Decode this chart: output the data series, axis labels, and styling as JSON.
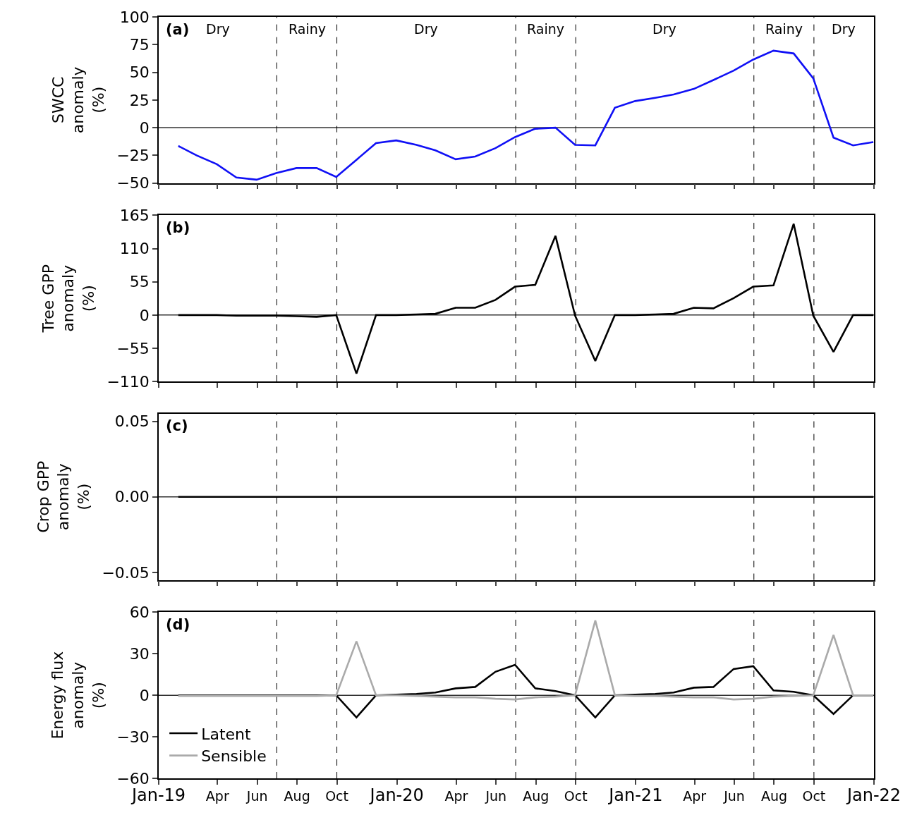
{
  "chart_data": [
    {
      "type": "line",
      "ylabel": "SWCC\nanomaly\n(%)",
      "tick_labels": "y",
      "x": [
        "2019-01-31",
        "2019-02-28",
        "2019-03-31",
        "2019-04-30",
        "2019-05-31",
        "2019-06-30",
        "2019-07-31",
        "2019-08-31",
        "2019-09-30",
        "2019-10-31",
        "2019-11-30",
        "2019-12-31",
        "2020-01-31",
        "2020-02-29",
        "2020-03-31",
        "2020-04-30",
        "2020-05-31",
        "2020-06-30",
        "2020-07-31",
        "2020-08-31",
        "2020-09-30",
        "2020-10-31",
        "2020-11-30",
        "2020-12-31",
        "2021-01-31",
        "2021-02-28",
        "2021-03-31",
        "2021-04-30",
        "2021-05-31",
        "2021-06-30",
        "2021-07-31",
        "2021-08-31",
        "2021-09-30",
        "2021-10-31",
        "2021-11-30",
        "2021-12-31"
      ],
      "series": [
        {
          "color": "#1010f5",
          "values": [
            -16.5,
            -25,
            -33,
            -45,
            -47,
            -41,
            -36.5,
            -36.5,
            -44.5,
            -29,
            -14,
            -11.5,
            -15.5,
            -20.5,
            -28.5,
            -26,
            -18.5,
            -8.5,
            -1,
            0,
            -15.5,
            -16,
            18,
            24,
            27,
            30,
            35,
            43,
            51.5,
            61.5,
            69.5,
            67,
            44.5,
            -9,
            -16,
            -13
          ]
        }
      ],
      "xlim": [
        "2019-01-01",
        "2022-01-01"
      ],
      "xticks": [
        {
          "value": "2019-01-01",
          "label": null
        },
        {
          "value": "2019-04-01",
          "label": null
        },
        {
          "value": "2019-06-01",
          "label": null
        },
        {
          "value": "2019-08-01",
          "label": null
        },
        {
          "value": "2019-10-01",
          "label": null
        },
        {
          "value": "2020-01-01",
          "label": null
        },
        {
          "value": "2020-04-01",
          "label": null
        },
        {
          "value": "2020-06-01",
          "label": null
        },
        {
          "value": "2020-08-01",
          "label": null
        },
        {
          "value": "2020-10-01",
          "label": null
        },
        {
          "value": "2021-01-01",
          "label": null
        },
        {
          "value": "2021-04-01",
          "label": null
        },
        {
          "value": "2021-06-01",
          "label": null
        },
        {
          "value": "2021-08-01",
          "label": null
        },
        {
          "value": "2021-10-01",
          "label": null
        },
        {
          "value": "2022-01-01",
          "label": null
        }
      ],
      "ylim": [
        -50,
        100
      ],
      "yticks": [
        {
          "value": -50,
          "label": "−50"
        },
        {
          "value": -25,
          "label": "−25"
        },
        0,
        25,
        50,
        75,
        100
      ],
      "ref_lines": [
        {
          "axis": "y",
          "value": 0,
          "color": "#333333",
          "line_style": "solid"
        },
        {
          "axis": "x",
          "value": "2019-07-01",
          "color": "#000000",
          "line_style": "dashed"
        },
        {
          "axis": "x",
          "value": "2019-10-01",
          "color": "#000000",
          "line_style": "dashed"
        },
        {
          "axis": "x",
          "value": "2020-07-01",
          "color": "#000000",
          "line_style": "dashed"
        },
        {
          "axis": "x",
          "value": "2020-10-01",
          "color": "#000000",
          "line_style": "dashed"
        },
        {
          "axis": "x",
          "value": "2021-07-01",
          "color": "#000000",
          "line_style": "dashed"
        },
        {
          "axis": "x",
          "value": "2021-10-01",
          "color": "#000000",
          "line_style": "dashed"
        }
      ],
      "annotations": [
        "(a)",
        "Dry",
        "Rainy",
        "Dry",
        "Rainy",
        "Dry",
        "Rainy",
        "Dry"
      ]
    },
    {
      "type": "line",
      "ylabel": "Tree GPP\nanomaly\n(%)",
      "tick_labels": "y",
      "x": [
        "2019-01-31",
        "2019-02-28",
        "2019-03-31",
        "2019-04-30",
        "2019-05-31",
        "2019-06-30",
        "2019-07-31",
        "2019-08-31",
        "2019-09-30",
        "2019-10-31",
        "2019-11-30",
        "2019-12-31",
        "2020-01-31",
        "2020-02-29",
        "2020-03-31",
        "2020-04-30",
        "2020-05-31",
        "2020-06-30",
        "2020-07-31",
        "2020-08-31",
        "2020-09-30",
        "2020-10-31",
        "2020-11-30",
        "2020-12-31",
        "2021-01-31",
        "2021-02-28",
        "2021-03-31",
        "2021-04-30",
        "2021-05-31",
        "2021-06-30",
        "2021-07-31",
        "2021-08-31",
        "2021-09-30",
        "2021-10-31",
        "2021-11-30",
        "2021-12-31"
      ],
      "series": [
        {
          "color": "#000000",
          "values": [
            0,
            0,
            0,
            -1,
            -1,
            -1,
            -2,
            -3,
            0,
            -97,
            0,
            0,
            1,
            2,
            12,
            12,
            25,
            47,
            50,
            131,
            -1,
            -76,
            0,
            0,
            1,
            2,
            12,
            11,
            28,
            47,
            49,
            151,
            -1,
            -61,
            0,
            0
          ]
        }
      ],
      "xlim": [
        "2019-01-01",
        "2022-01-01"
      ],
      "xticks": [
        {
          "value": "2019-01-01",
          "label": null
        },
        {
          "value": "2019-04-01",
          "label": null
        },
        {
          "value": "2019-06-01",
          "label": null
        },
        {
          "value": "2019-08-01",
          "label": null
        },
        {
          "value": "2019-10-01",
          "label": null
        },
        {
          "value": "2020-01-01",
          "label": null
        },
        {
          "value": "2020-04-01",
          "label": null
        },
        {
          "value": "2020-06-01",
          "label": null
        },
        {
          "value": "2020-08-01",
          "label": null
        },
        {
          "value": "2020-10-01",
          "label": null
        },
        {
          "value": "2021-01-01",
          "label": null
        },
        {
          "value": "2021-04-01",
          "label": null
        },
        {
          "value": "2021-06-01",
          "label": null
        },
        {
          "value": "2021-08-01",
          "label": null
        },
        {
          "value": "2021-10-01",
          "label": null
        },
        {
          "value": "2022-01-01",
          "label": null
        }
      ],
      "ylim": [
        -110,
        165
      ],
      "yticks": [
        {
          "value": -110,
          "label": "−110"
        },
        {
          "value": -55,
          "label": "−55"
        },
        0,
        55,
        110,
        165
      ],
      "ref_lines": [
        {
          "axis": "y",
          "value": 0,
          "color": "#333333",
          "line_style": "solid"
        },
        {
          "axis": "x",
          "value": "2019-07-01",
          "color": "#000000",
          "line_style": "dashed"
        },
        {
          "axis": "x",
          "value": "2019-10-01",
          "color": "#000000",
          "line_style": "dashed"
        },
        {
          "axis": "x",
          "value": "2020-07-01",
          "color": "#000000",
          "line_style": "dashed"
        },
        {
          "axis": "x",
          "value": "2020-10-01",
          "color": "#000000",
          "line_style": "dashed"
        },
        {
          "axis": "x",
          "value": "2021-07-01",
          "color": "#000000",
          "line_style": "dashed"
        },
        {
          "axis": "x",
          "value": "2021-10-01",
          "color": "#000000",
          "line_style": "dashed"
        }
      ],
      "annotations": [
        "(b)"
      ]
    },
    {
      "type": "line",
      "ylabel": "Crop GPP\nanomaly\n(%)",
      "tick_labels": "y",
      "x": [
        "2019-01-31",
        "2019-02-28",
        "2019-03-31",
        "2019-04-30",
        "2019-05-31",
        "2019-06-30",
        "2019-07-31",
        "2019-08-31",
        "2019-09-30",
        "2019-10-31",
        "2019-11-30",
        "2019-12-31",
        "2020-01-31",
        "2020-02-29",
        "2020-03-31",
        "2020-04-30",
        "2020-05-31",
        "2020-06-30",
        "2020-07-31",
        "2020-08-31",
        "2020-09-30",
        "2020-10-31",
        "2020-11-30",
        "2020-12-31",
        "2021-01-31",
        "2021-02-28",
        "2021-03-31",
        "2021-04-30",
        "2021-05-31",
        "2021-06-30",
        "2021-07-31",
        "2021-08-31",
        "2021-09-30",
        "2021-10-31",
        "2021-11-30",
        "2021-12-31"
      ],
      "series": [
        {
          "color": "#000000",
          "values": [
            0,
            0,
            0,
            0,
            0,
            0,
            0,
            0,
            0,
            0,
            0,
            0,
            0,
            0,
            0,
            0,
            0,
            0,
            0,
            0,
            0,
            0,
            0,
            0,
            0,
            0,
            0,
            0,
            0,
            0,
            0,
            0,
            0,
            0,
            0,
            0
          ]
        }
      ],
      "xlim": [
        "2019-01-01",
        "2022-01-01"
      ],
      "xticks": [
        {
          "value": "2019-01-01",
          "label": null
        },
        {
          "value": "2019-04-01",
          "label": null
        },
        {
          "value": "2019-06-01",
          "label": null
        },
        {
          "value": "2019-08-01",
          "label": null
        },
        {
          "value": "2019-10-01",
          "label": null
        },
        {
          "value": "2020-01-01",
          "label": null
        },
        {
          "value": "2020-04-01",
          "label": null
        },
        {
          "value": "2020-06-01",
          "label": null
        },
        {
          "value": "2020-08-01",
          "label": null
        },
        {
          "value": "2020-10-01",
          "label": null
        },
        {
          "value": "2021-01-01",
          "label": null
        },
        {
          "value": "2021-04-01",
          "label": null
        },
        {
          "value": "2021-06-01",
          "label": null
        },
        {
          "value": "2021-08-01",
          "label": null
        },
        {
          "value": "2021-10-01",
          "label": null
        },
        {
          "value": "2022-01-01",
          "label": null
        }
      ],
      "ylim": [
        -0.055,
        0.055
      ],
      "yticks": [
        {
          "value": -0.05,
          "label": "−0.05"
        },
        {
          "value": 0,
          "label": "0.00"
        },
        0.05
      ],
      "ref_lines": [
        {
          "axis": "y",
          "value": 0,
          "color": "#333333",
          "line_style": "solid"
        },
        {
          "axis": "x",
          "value": "2019-07-01",
          "color": "#000000",
          "line_style": "dashed"
        },
        {
          "axis": "x",
          "value": "2019-10-01",
          "color": "#000000",
          "line_style": "dashed"
        },
        {
          "axis": "x",
          "value": "2020-07-01",
          "color": "#000000",
          "line_style": "dashed"
        },
        {
          "axis": "x",
          "value": "2020-10-01",
          "color": "#000000",
          "line_style": "dashed"
        },
        {
          "axis": "x",
          "value": "2021-07-01",
          "color": "#000000",
          "line_style": "dashed"
        },
        {
          "axis": "x",
          "value": "2021-10-01",
          "color": "#000000",
          "line_style": "dashed"
        }
      ],
      "annotations": [
        "(c)"
      ]
    },
    {
      "type": "line",
      "ylabel": "Energy flux\nanomaly\n(%)",
      "legend": "bottom left",
      "x": [
        "2019-01-31",
        "2019-02-28",
        "2019-03-31",
        "2019-04-30",
        "2019-05-31",
        "2019-06-30",
        "2019-07-31",
        "2019-08-31",
        "2019-09-30",
        "2019-10-31",
        "2019-11-30",
        "2019-12-31",
        "2020-01-31",
        "2020-02-29",
        "2020-03-31",
        "2020-04-30",
        "2020-05-31",
        "2020-06-30",
        "2020-07-31",
        "2020-08-31",
        "2020-09-30",
        "2020-10-31",
        "2020-11-30",
        "2020-12-31",
        "2021-01-31",
        "2021-02-28",
        "2021-03-31",
        "2021-04-30",
        "2021-05-31",
        "2021-06-30",
        "2021-07-31",
        "2021-08-31",
        "2021-09-30",
        "2021-10-31",
        "2021-11-30",
        "2021-12-31"
      ],
      "series": [
        {
          "name": "Latent",
          "color": "#000000",
          "values": [
            0,
            0,
            0,
            0,
            0,
            0,
            0,
            0,
            0,
            -16,
            0,
            0.5,
            1,
            2,
            5,
            6,
            17,
            22,
            5,
            3,
            0,
            -16,
            0,
            0.5,
            1,
            2,
            5.5,
            6,
            19,
            21,
            3.5,
            2.5,
            0,
            -13.5,
            0,
            0
          ]
        },
        {
          "name": "Sensible",
          "color": "#aaaaaa",
          "values": [
            -0.5,
            -0.5,
            -0.5,
            -0.5,
            -0.5,
            -0.5,
            -0.5,
            -0.5,
            0,
            39,
            0,
            0,
            -0.5,
            -1,
            -1.5,
            -1.5,
            -2.5,
            -3,
            -1.5,
            -1,
            0,
            54,
            0,
            -0.5,
            -0.5,
            -1,
            -1.5,
            -1.5,
            -3,
            -2.5,
            -1,
            -0.5,
            0,
            43.5,
            0,
            0
          ]
        }
      ],
      "xlim": [
        "2019-01-01",
        "2022-01-01"
      ],
      "xticks": [
        {
          "value": "2019-01-01",
          "label": "Jan-19"
        },
        {
          "value": "2019-04-01",
          "label": "Apr"
        },
        {
          "value": "2019-06-01",
          "label": "Jun"
        },
        {
          "value": "2019-08-01",
          "label": "Aug"
        },
        {
          "value": "2019-10-01",
          "label": "Oct"
        },
        {
          "value": "2020-01-01",
          "label": "Jan-20"
        },
        {
          "value": "2020-04-01",
          "label": "Apr"
        },
        {
          "value": "2020-06-01",
          "label": "Jun"
        },
        {
          "value": "2020-08-01",
          "label": "Aug"
        },
        {
          "value": "2020-10-01",
          "label": "Oct"
        },
        {
          "value": "2021-01-01",
          "label": "Jan-21"
        },
        {
          "value": "2021-04-01",
          "label": "Apr"
        },
        {
          "value": "2021-06-01",
          "label": "Jun"
        },
        {
          "value": "2021-08-01",
          "label": "Aug"
        },
        {
          "value": "2021-10-01",
          "label": "Oct"
        },
        {
          "value": "2022-01-01",
          "label": "Jan-22"
        }
      ],
      "ylim": [
        -60,
        60
      ],
      "yticks": [
        {
          "value": -60,
          "label": "−60"
        },
        {
          "value": -30,
          "label": "−30"
        },
        0,
        30,
        60
      ],
      "ref_lines": [
        {
          "axis": "y",
          "value": 0,
          "color": "#333333",
          "line_style": "solid"
        },
        {
          "axis": "x",
          "value": "2019-07-01",
          "color": "#000000",
          "line_style": "dashed"
        },
        {
          "axis": "x",
          "value": "2019-10-01",
          "color": "#000000",
          "line_style": "dashed"
        },
        {
          "axis": "x",
          "value": "2020-07-01",
          "color": "#000000",
          "line_style": "dashed"
        },
        {
          "axis": "x",
          "value": "2020-10-01",
          "color": "#000000",
          "line_style": "dashed"
        },
        {
          "axis": "x",
          "value": "2021-07-01",
          "color": "#000000",
          "line_style": "dashed"
        },
        {
          "axis": "x",
          "value": "2021-10-01",
          "color": "#000000",
          "line_style": "dashed"
        }
      ],
      "annotations": [
        "(d)"
      ]
    }
  ]
}
